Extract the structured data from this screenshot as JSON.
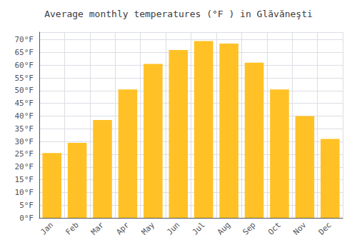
{
  "chart_data": {
    "type": "bar",
    "title": "Average monthly temperatures (°F ) in Glăvăneşti",
    "categories": [
      "Jan",
      "Feb",
      "Mar",
      "Apr",
      "May",
      "Jun",
      "Jul",
      "Aug",
      "Sep",
      "Oct",
      "Nov",
      "Dec"
    ],
    "values": [
      25.5,
      29.5,
      38.5,
      50.5,
      60.5,
      66.0,
      69.5,
      68.5,
      61.0,
      50.5,
      40.0,
      31.0
    ],
    "color": "#FFC125",
    "ylim": [
      0,
      73
    ],
    "yticks": [
      {
        "value": 0,
        "label": "0°F"
      },
      {
        "value": 5,
        "label": "5°F"
      },
      {
        "value": 10,
        "label": "10°F"
      },
      {
        "value": 15,
        "label": "15°F"
      },
      {
        "value": 20,
        "label": "20°F"
      },
      {
        "value": 25,
        "label": "25°F"
      },
      {
        "value": 30,
        "label": "30°F"
      },
      {
        "value": 35,
        "label": "35°F"
      },
      {
        "value": 40,
        "label": "40°F"
      },
      {
        "value": 45,
        "label": "45°F"
      },
      {
        "value": 50,
        "label": "50°F"
      },
      {
        "value": 55,
        "label": "55°F"
      },
      {
        "value": 60,
        "label": "60°F"
      },
      {
        "value": 65,
        "label": "65°F"
      },
      {
        "value": 70,
        "label": "70°F"
      }
    ],
    "grid": true
  }
}
